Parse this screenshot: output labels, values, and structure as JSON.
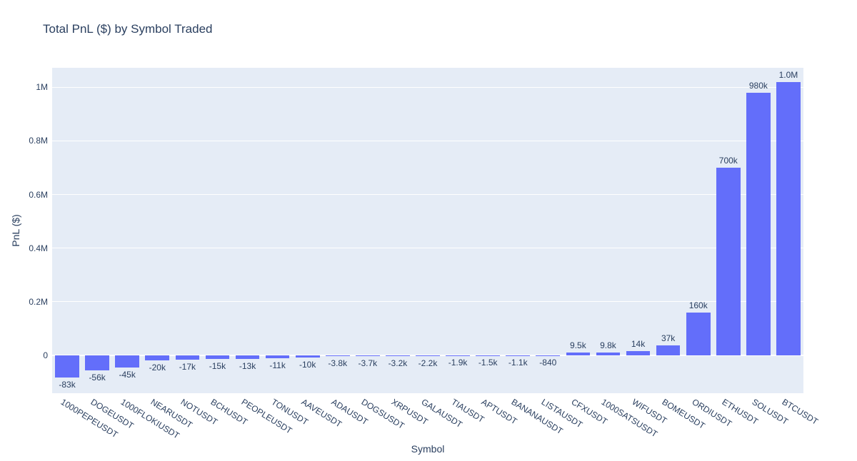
{
  "chart_data": {
    "type": "bar",
    "title": "Total PnL ($) by Symbol Traded",
    "xlabel": "Symbol",
    "ylabel": "PnL ($)",
    "categories": [
      "1000PEPEUSDT",
      "DOGEUSDT",
      "1000FLOKIUSDT",
      "NEARUSDT",
      "NOTUSDT",
      "BCHUSDT",
      "PEOPLEUSDT",
      "TONUSDT",
      "AAVEUSDT",
      "ADAUSDT",
      "DOGSUSDT",
      "XRPUSDT",
      "GALAUSDT",
      "TIAUSDT",
      "APTUSDT",
      "BANANAUSDT",
      "LISTAUSDT",
      "CFXUSDT",
      "1000SATSUSDT",
      "WIFUSDT",
      "BOMEUSDT",
      "ORDIUSDT",
      "ETHUSDT",
      "SOLUSDT",
      "BTCUSDT"
    ],
    "values": [
      -83000,
      -56000,
      -45000,
      -20000,
      -17000,
      -15000,
      -13000,
      -11000,
      -10000,
      -3800,
      -3700,
      -3200,
      -2200,
      -1900,
      -1500,
      -1100,
      -840,
      9500,
      9800,
      14000,
      37000,
      160000,
      700000,
      980000,
      1020000
    ],
    "bar_labels": [
      "-83k",
      "-56k",
      "-45k",
      "-20k",
      "-17k",
      "-15k",
      "-13k",
      "-11k",
      "-10k",
      "-3.8k",
      "-3.7k",
      "-3.2k",
      "-2.2k",
      "-1.9k",
      "-1.5k",
      "-1.1k",
      "-840",
      "9.5k",
      "9.8k",
      "14k",
      "37k",
      "160k",
      "700k",
      "980k",
      "1.0M"
    ],
    "y_ticks": [
      {
        "value": 0,
        "label": "0"
      },
      {
        "value": 200000,
        "label": "0.2M"
      },
      {
        "value": 400000,
        "label": "0.4M"
      },
      {
        "value": 600000,
        "label": "0.6M"
      },
      {
        "value": 800000,
        "label": "0.8M"
      },
      {
        "value": 1000000,
        "label": "1M"
      }
    ],
    "ylim": [
      -142000,
      1073000
    ],
    "bar_gap_fraction": 0.2,
    "grid": true,
    "legend_position": "none",
    "colors": {
      "bar": "#636EFA",
      "plot_background": "#E5ECF6",
      "gridline": "#FFFFFF",
      "font": "#2A3F5F"
    }
  }
}
